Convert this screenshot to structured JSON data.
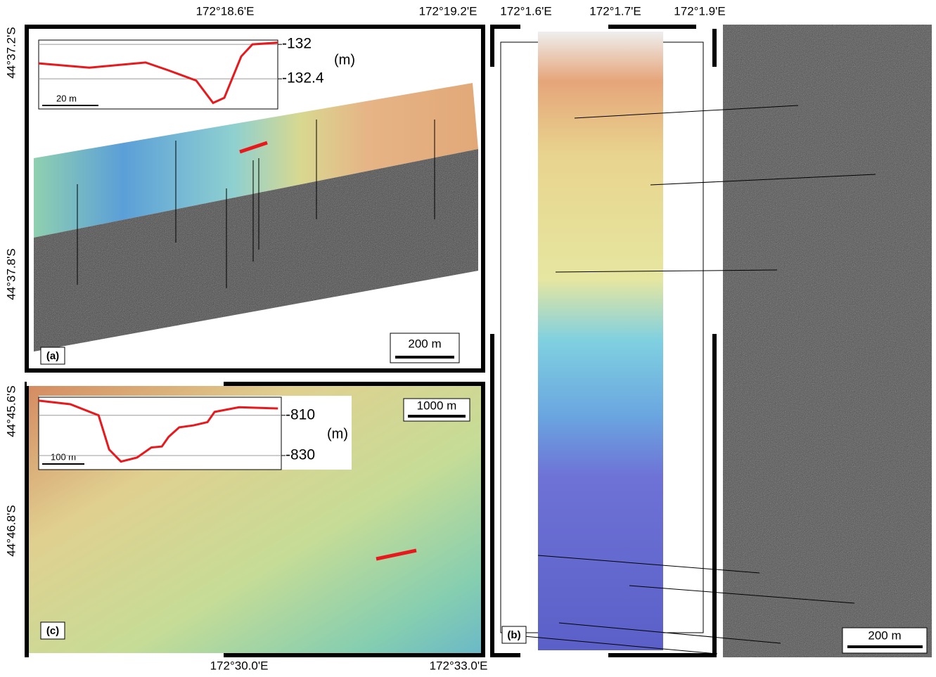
{
  "coordinates": {
    "top": [
      "172°18.6'E",
      "172°19.2'E",
      "172°1.6'E",
      "172°1.7'E",
      "172°1.9'E"
    ],
    "left": [
      "44°37.2'S",
      "44°37.8'S",
      "44°45.6'S",
      "44°46.8'S"
    ],
    "bottom": [
      "172°30.0'E",
      "172°33.0'E"
    ]
  },
  "panels": {
    "a": {
      "label": "(a)",
      "scale_bar": "200 m",
      "profile": {
        "type": "line",
        "unit": "(m)",
        "scale_bar": "20 m",
        "color": "#e8191c",
        "x": [
          0,
          18,
          38,
          46,
          56,
          62,
          66,
          72,
          76,
          85
        ],
        "values": [
          -132.22,
          -132.27,
          -132.21,
          -132.3,
          -132.42,
          -132.68,
          -132.62,
          -132.14,
          -132.0,
          -131.98
        ],
        "xlim": [
          0,
          85
        ],
        "ylim": [
          -132.75,
          -131.95
        ],
        "yticks": [
          -132,
          -132.4
        ]
      }
    },
    "b": {
      "label": "(b)",
      "scale_bar": "200 m"
    },
    "c": {
      "label": "(c)",
      "scale_bar": "1000 m",
      "profile": {
        "type": "line",
        "unit": "(m)",
        "scale_bar": "100 m",
        "color": "#e8191c",
        "x": [
          0,
          75,
          142,
          167,
          195,
          233,
          267,
          292,
          308,
          333,
          367,
          400,
          417,
          475,
          567
        ],
        "values": [
          -802.7,
          -804.5,
          -810,
          -827,
          -833,
          -831,
          -826,
          -825.5,
          -820.7,
          -816,
          -815,
          -813.4,
          -808.3,
          -806,
          -806.6
        ],
        "xlim": [
          0,
          575
        ],
        "ylim": [
          -837,
          -801
        ],
        "yticks": [
          -810,
          -830
        ]
      }
    }
  }
}
